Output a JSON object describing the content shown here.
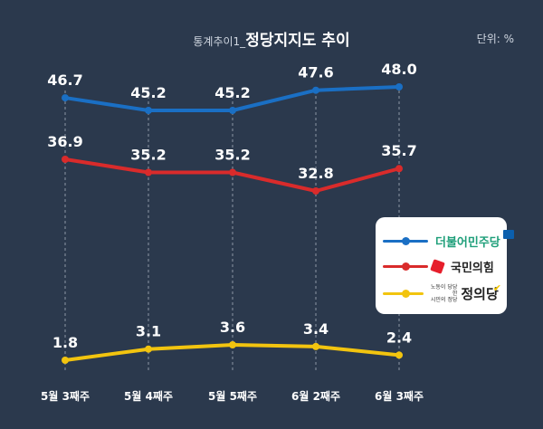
{
  "title": {
    "prefix": "통계추이1_",
    "main": "정당지지도 추이"
  },
  "unit": "단위: %",
  "chart_data": {
    "type": "line",
    "title": "정당지지도 추이",
    "categories": [
      "5월 3째주",
      "5월 4째주",
      "5월 5째주",
      "6월 2째주",
      "6월 3째주"
    ],
    "series": [
      {
        "name": "더불어민주당",
        "color": "#1a6fc4",
        "values": [
          46.7,
          45.2,
          45.2,
          47.6,
          48.0
        ]
      },
      {
        "name": "국민의힘",
        "color": "#d92b2b",
        "values": [
          36.9,
          35.2,
          35.2,
          32.8,
          35.7
        ]
      },
      {
        "name": "정의당",
        "color": "#f2c40f",
        "values": [
          1.8,
          3.1,
          3.6,
          3.4,
          2.4
        ]
      }
    ],
    "ylabel": "%",
    "grid": "vertical-dashed",
    "legend": "right"
  },
  "legend": {
    "items": [
      {
        "label": "더불어민주당",
        "color": "#1a6fc4",
        "text_color": "#1f9f7a"
      },
      {
        "label": "국민의힘",
        "color": "#d92b2b",
        "text_color": "#222222"
      },
      {
        "label": "정의당",
        "color": "#f2c40f",
        "text_color": "#222222",
        "slogan_1": "노동이 당당한",
        "slogan_2": "시민의 정당"
      }
    ]
  },
  "colors": {
    "background": "#2b394d",
    "gridline": "#8c96a5"
  }
}
